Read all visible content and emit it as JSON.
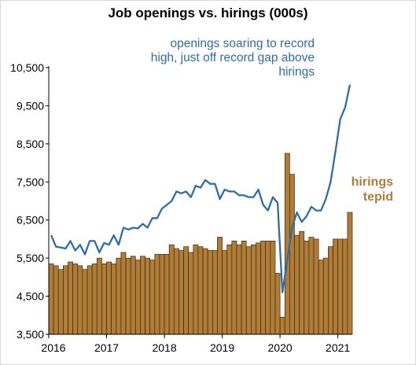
{
  "chart_data": {
    "type": "bar+line",
    "title": "Job openings vs. hirings (000s)",
    "xlabel": "",
    "ylabel": "",
    "ylim": [
      3500,
      10500
    ],
    "yticks": [
      "3,500",
      "4,500",
      "5,500",
      "6,500",
      "7,500",
      "8,500",
      "9,500",
      "10,500"
    ],
    "xticks": [
      "2016",
      "2017",
      "2018",
      "2019",
      "2020",
      "2021"
    ],
    "x_start": "2016-01",
    "x_frequency": "monthly",
    "annotations": {
      "openings": "openings soaring to record high, just off record gap above hirings",
      "hirings": "hirings tepid"
    },
    "series": [
      {
        "name": "hirings",
        "kind": "bar",
        "color": "#b07d38",
        "values": [
          5350,
          5300,
          5200,
          5300,
          5400,
          5350,
          5300,
          5200,
          5300,
          5350,
          5500,
          5350,
          5400,
          5350,
          5500,
          5650,
          5500,
          5550,
          5450,
          5550,
          5500,
          5450,
          5600,
          5600,
          5600,
          5850,
          5750,
          5700,
          5800,
          5650,
          5850,
          5800,
          5750,
          5700,
          5700,
          6050,
          5700,
          5850,
          5950,
          5850,
          5950,
          5800,
          5850,
          5900,
          5950,
          5950,
          5950,
          5100,
          3950,
          8250,
          7700,
          6100,
          6200,
          5950,
          6050,
          6000,
          5450,
          5500,
          5800,
          6000,
          6000,
          6000,
          6700
        ]
      },
      {
        "name": "openings",
        "kind": "line",
        "color": "#2f6ea5",
        "values": [
          6100,
          5800,
          5780,
          5750,
          5950,
          5700,
          5850,
          5600,
          5950,
          5950,
          5650,
          5900,
          5850,
          6100,
          5850,
          6300,
          6250,
          6300,
          6280,
          6400,
          6300,
          6550,
          6550,
          6800,
          6900,
          7000,
          7250,
          7200,
          7250,
          7100,
          7400,
          7350,
          7550,
          7450,
          7450,
          7050,
          7300,
          7250,
          7250,
          7150,
          7150,
          7100,
          7100,
          7300,
          6900,
          6750,
          7100,
          6950,
          4600,
          5450,
          6300,
          6700,
          6450,
          6600,
          6850,
          6750,
          6750,
          7050,
          7500,
          8300,
          9150,
          9450,
          10050
        ]
      }
    ]
  }
}
